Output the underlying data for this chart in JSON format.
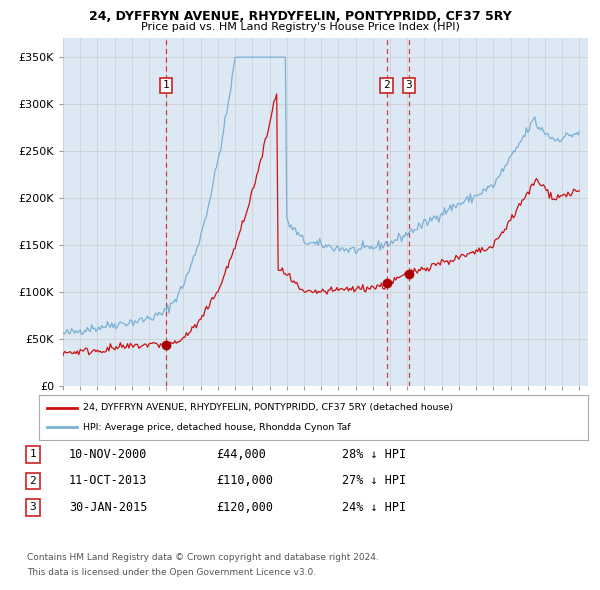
{
  "title": "24, DYFFRYN AVENUE, RHYDYFELIN, PONTYPRIDD, CF37 5RY",
  "subtitle": "Price paid vs. HM Land Registry's House Price Index (HPI)",
  "legend_label_red": "24, DYFFRYN AVENUE, RHYDYFELIN, PONTYPRIDD, CF37 5RY (detached house)",
  "legend_label_blue": "HPI: Average price, detached house, Rhondda Cynon Taf",
  "footer_line1": "Contains HM Land Registry data © Crown copyright and database right 2024.",
  "footer_line2": "This data is licensed under the Open Government Licence v3.0.",
  "transactions": [
    {
      "num": 1,
      "date": "10-NOV-2000",
      "price": "44,000",
      "pct": "28%",
      "dir": "↓",
      "x": 2001.0
    },
    {
      "num": 2,
      "date": "11-OCT-2013",
      "price": "110,000",
      "pct": "27%",
      "dir": "↓",
      "x": 2013.8
    },
    {
      "num": 3,
      "date": "30-JAN-2015",
      "price": "120,000",
      "pct": "24%",
      "dir": "↓",
      "x": 2015.1
    }
  ],
  "hpi_color": "#7bafd4",
  "price_color": "#cc1111",
  "background_color": "#dce9f5",
  "ylim": [
    0,
    370000
  ],
  "xlim_start": 1995.0,
  "xlim_end": 2025.5,
  "yticks": [
    0,
    50000,
    100000,
    150000,
    200000,
    250000,
    300000,
    350000
  ],
  "ytick_labels": [
    "£0",
    "£50K",
    "£100K",
    "£150K",
    "£200K",
    "£250K",
    "£300K",
    "£350K"
  ],
  "xticks": [
    1995,
    1996,
    1997,
    1998,
    1999,
    2000,
    2001,
    2002,
    2003,
    2004,
    2005,
    2006,
    2007,
    2008,
    2009,
    2010,
    2011,
    2012,
    2013,
    2014,
    2015,
    2016,
    2017,
    2018,
    2019,
    2020,
    2021,
    2022,
    2023,
    2024,
    2025
  ]
}
